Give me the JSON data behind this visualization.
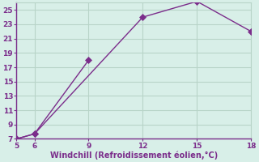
{
  "line1_x": [
    5,
    6,
    9
  ],
  "line1_y": [
    7,
    7.7,
    18
  ],
  "line2_x": [
    5,
    6,
    12,
    15,
    18
  ],
  "line2_y": [
    7,
    7.7,
    24,
    26.2,
    22
  ],
  "color": "#7b2d8b",
  "bg_color": "#d8efe8",
  "grid_color": "#b8d4c8",
  "xlabel": "Windchill (Refroidissement éolien,°C)",
  "xlim": [
    5,
    18
  ],
  "ylim": [
    7,
    26
  ],
  "xticks": [
    5,
    6,
    9,
    12,
    15,
    18
  ],
  "yticks": [
    7,
    9,
    11,
    13,
    15,
    17,
    19,
    21,
    23,
    25
  ],
  "xlabel_color": "#7b2d8b",
  "tick_color": "#7b2d8b",
  "markersize": 4,
  "linewidth": 1.0
}
